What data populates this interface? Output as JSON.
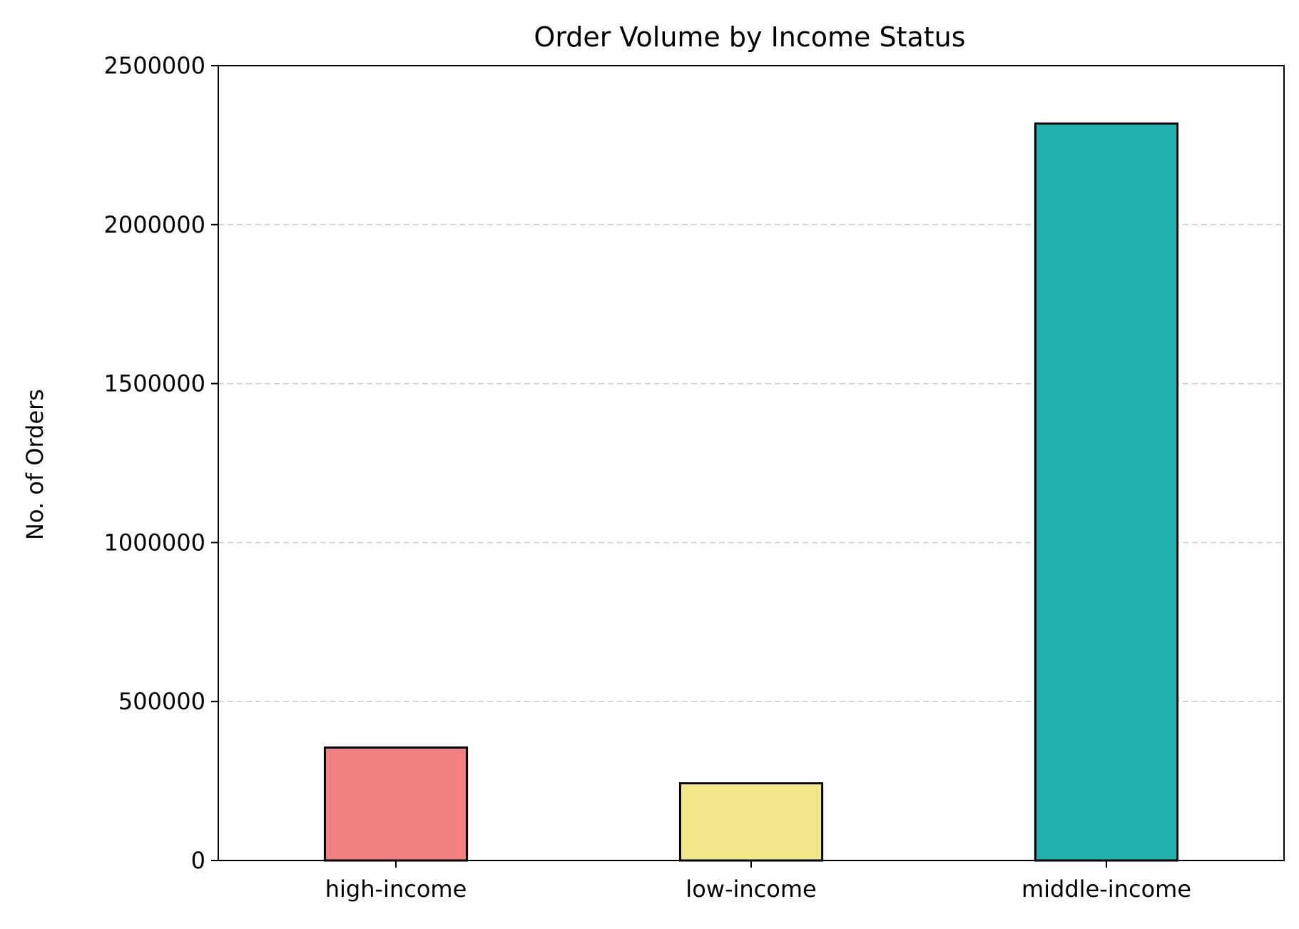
{
  "chart_data": {
    "type": "bar",
    "title": "Order Volume by Income Status",
    "xlabel": "",
    "ylabel": "No. of Orders",
    "categories": [
      "high-income",
      "low-income",
      "middle-income"
    ],
    "values": [
      355000,
      243000,
      2318000
    ],
    "colors": [
      "#f08080",
      "#f0e68c",
      "#20b2aa"
    ],
    "edge_color": "#000000",
    "ylim": [
      0,
      2500000
    ],
    "yticks": [
      0,
      500000,
      1000000,
      1500000,
      2000000,
      2500000
    ],
    "ytick_labels": [
      "0",
      "500000",
      "1000000",
      "1500000",
      "2000000",
      "2500000"
    ],
    "grid": "y-dashed",
    "legend": "none"
  }
}
